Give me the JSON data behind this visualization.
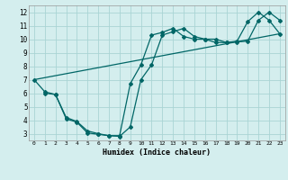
{
  "xlabel": "Humidex (Indice chaleur)",
  "bg_color": "#d4eeee",
  "grid_color": "#aad4d4",
  "line_color": "#006666",
  "xlim": [
    -0.5,
    23.5
  ],
  "ylim": [
    2.5,
    12.5
  ],
  "xticks": [
    0,
    1,
    2,
    3,
    4,
    5,
    6,
    7,
    8,
    9,
    10,
    11,
    12,
    13,
    14,
    15,
    16,
    17,
    18,
    19,
    20,
    21,
    22,
    23
  ],
  "yticks": [
    3,
    4,
    5,
    6,
    7,
    8,
    9,
    10,
    11,
    12
  ],
  "line1_x": [
    1,
    2,
    3,
    4,
    5,
    6,
    7,
    8,
    9,
    10,
    11,
    12,
    13,
    14,
    15,
    16,
    17,
    18,
    19,
    20,
    21,
    22,
    23
  ],
  "line1_y": [
    6.0,
    5.9,
    4.2,
    3.9,
    3.2,
    3.0,
    2.85,
    2.8,
    3.5,
    7.0,
    8.1,
    10.3,
    10.55,
    10.8,
    10.2,
    10.0,
    10.0,
    9.75,
    9.8,
    9.85,
    11.4,
    12.0,
    11.4
  ],
  "line2_x": [
    0,
    1,
    2,
    3,
    4,
    5,
    6,
    7,
    8,
    9,
    10,
    11,
    12,
    13,
    14,
    15,
    16,
    17,
    18,
    19,
    20,
    21,
    22,
    23
  ],
  "line2_y": [
    7.0,
    6.1,
    5.9,
    4.1,
    3.85,
    3.05,
    2.95,
    2.85,
    2.85,
    6.7,
    8.1,
    10.3,
    10.5,
    10.8,
    10.2,
    10.0,
    10.0,
    9.75,
    9.75,
    9.85,
    11.3,
    12.0,
    11.4,
    10.4
  ],
  "line3_x": [
    0,
    23
  ],
  "line3_y": [
    7.0,
    10.4
  ]
}
